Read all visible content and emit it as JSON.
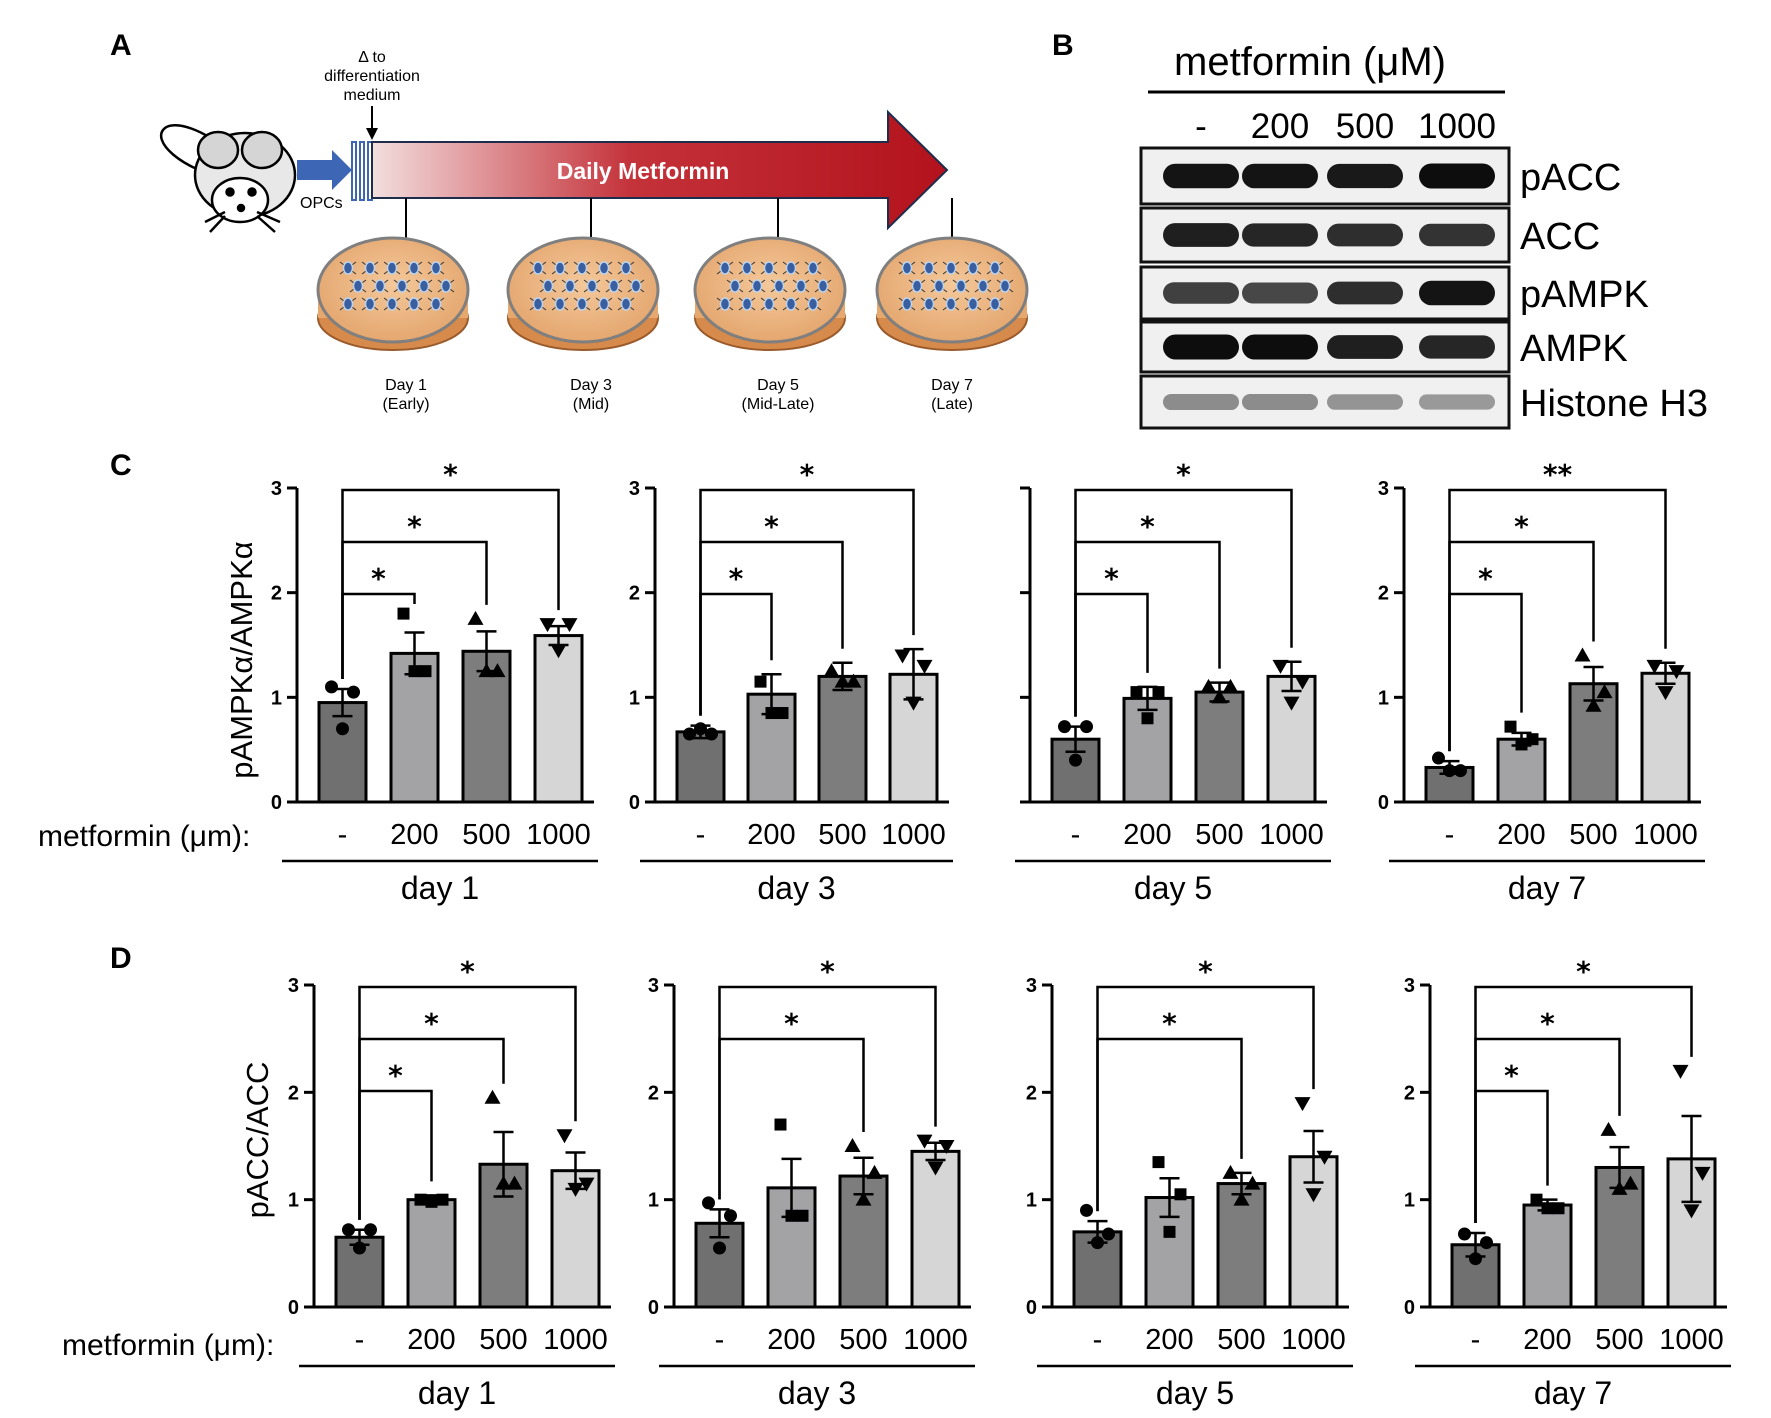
{
  "panels": {
    "a": "A",
    "b": "B",
    "c": "C",
    "d": "D"
  },
  "timeline": {
    "delta_label": [
      "Δ to",
      "differentiation",
      "medium"
    ],
    "opcs_label": "OPCs",
    "arrow_label": "Daily Metformin",
    "days": [
      {
        "name": "Day 1",
        "stage": "(Early)"
      },
      {
        "name": "Day 3",
        "stage": "(Mid)"
      },
      {
        "name": "Day 5",
        "stage": "(Mid-Late)"
      },
      {
        "name": "Day 7",
        "stage": "(Late)"
      }
    ]
  },
  "western_blot": {
    "header": "metformin (μM)",
    "lanes": [
      "-",
      "200",
      "500",
      "1000"
    ],
    "rows": [
      "pACC",
      "ACC",
      "pAMPK",
      "AMPK",
      "Histone H3"
    ],
    "band_intensity": [
      [
        0.92,
        0.92,
        0.9,
        0.95
      ],
      [
        0.88,
        0.85,
        0.82,
        0.8
      ],
      [
        0.75,
        0.72,
        0.82,
        0.92
      ],
      [
        0.95,
        0.95,
        0.88,
        0.85
      ],
      [
        0.45,
        0.45,
        0.42,
        0.4
      ]
    ]
  },
  "x_lead_label": "metformin (μm):",
  "chart_data": [
    {
      "type": "bar",
      "panel": "C",
      "title": "day 1",
      "ylabel": "pAMPKα/AMPKα",
      "ylim": [
        0,
        3
      ],
      "yticks": [
        "0",
        "1",
        "2",
        "3"
      ],
      "categories": [
        "-",
        "200",
        "500",
        "1000"
      ],
      "values": [
        0.95,
        1.42,
        1.44,
        1.59
      ],
      "errors": [
        0.13,
        0.2,
        0.19,
        0.09
      ],
      "points": [
        [
          1.1,
          1.05,
          0.7
        ],
        [
          1.8,
          1.25,
          1.25
        ],
        [
          1.75,
          1.25,
          1.25
        ],
        [
          1.7,
          1.7,
          1.45
        ]
      ],
      "significance": [
        {
          "to": 1,
          "label": "*"
        },
        {
          "to": 2,
          "label": "*"
        },
        {
          "to": 3,
          "label": "*"
        }
      ]
    },
    {
      "type": "bar",
      "panel": "C",
      "title": "day 3",
      "ylabel": "",
      "ylim": [
        0,
        3
      ],
      "yticks": [
        "0",
        "1",
        "2",
        "3"
      ],
      "categories": [
        "-",
        "200",
        "500",
        "1000"
      ],
      "values": [
        0.67,
        1.03,
        1.2,
        1.22
      ],
      "errors": [
        0.06,
        0.19,
        0.13,
        0.24
      ],
      "points": [
        [
          0.65,
          0.65,
          0.7
        ],
        [
          1.15,
          0.85,
          0.85
        ],
        [
          1.25,
          1.15,
          1.15
        ],
        [
          1.4,
          1.3,
          0.95
        ]
      ],
      "significance": [
        {
          "to": 1,
          "label": "*"
        },
        {
          "to": 2,
          "label": "*"
        },
        {
          "to": 3,
          "label": "*"
        }
      ]
    },
    {
      "type": "bar",
      "panel": "C",
      "title": "day 5",
      "ylabel": "",
      "ylim": [
        0,
        3
      ],
      "yticks": [
        "",
        "",
        "",
        ""
      ],
      "categories": [
        "-",
        "200",
        "500",
        "1000"
      ],
      "values": [
        0.6,
        0.99,
        1.05,
        1.2
      ],
      "errors": [
        0.12,
        0.11,
        0.09,
        0.14
      ],
      "points": [
        [
          0.72,
          0.72,
          0.4
        ],
        [
          1.05,
          1.05,
          0.8
        ],
        [
          1.1,
          1.1,
          1.0
        ],
        [
          1.3,
          1.15,
          0.95
        ]
      ],
      "significance": [
        {
          "to": 1,
          "label": "*"
        },
        {
          "to": 2,
          "label": "*"
        },
        {
          "to": 3,
          "label": "*"
        }
      ]
    },
    {
      "type": "bar",
      "panel": "C",
      "title": "day 7",
      "ylabel": "",
      "ylim": [
        0,
        3
      ],
      "yticks": [
        "0",
        "1",
        "2",
        "3"
      ],
      "categories": [
        "-",
        "200",
        "500",
        "1000"
      ],
      "values": [
        0.33,
        0.6,
        1.13,
        1.23
      ],
      "errors": [
        0.06,
        0.06,
        0.16,
        0.1
      ],
      "points": [
        [
          0.42,
          0.3,
          0.3
        ],
        [
          0.72,
          0.6,
          0.55
        ],
        [
          1.4,
          1.05,
          0.92
        ],
        [
          1.3,
          1.25,
          1.05
        ]
      ],
      "significance": [
        {
          "to": 1,
          "label": "*"
        },
        {
          "to": 2,
          "label": "*"
        },
        {
          "to": 3,
          "label": "**"
        }
      ]
    },
    {
      "type": "bar",
      "panel": "D",
      "title": "day 1",
      "ylabel": "pACC/ACC",
      "ylim": [
        0,
        3
      ],
      "yticks": [
        "0",
        "1",
        "2",
        "3"
      ],
      "categories": [
        "-",
        "200",
        "500",
        "1000"
      ],
      "values": [
        0.65,
        1.0,
        1.33,
        1.27
      ],
      "errors": [
        0.07,
        0.04,
        0.3,
        0.17
      ],
      "points": [
        [
          0.72,
          0.72,
          0.55
        ],
        [
          1.0,
          1.0,
          0.98
        ],
        [
          1.95,
          1.15,
          1.15
        ],
        [
          1.6,
          1.15,
          1.1
        ]
      ],
      "significance": [
        {
          "to": 1,
          "label": "*"
        },
        {
          "to": 2,
          "label": "*"
        },
        {
          "to": 3,
          "label": "*"
        }
      ]
    },
    {
      "type": "bar",
      "panel": "D",
      "title": "day 3",
      "ylabel": "",
      "ylim": [
        0,
        3
      ],
      "yticks": [
        "0",
        "1",
        "2",
        "3"
      ],
      "categories": [
        "-",
        "200",
        "500",
        "1000"
      ],
      "values": [
        0.78,
        1.11,
        1.22,
        1.45
      ],
      "errors": [
        0.13,
        0.27,
        0.17,
        0.08
      ],
      "points": [
        [
          0.97,
          0.85,
          0.55
        ],
        [
          1.7,
          0.85,
          0.85
        ],
        [
          1.5,
          1.25,
          1.0
        ],
        [
          1.55,
          1.5,
          1.3
        ]
      ],
      "significance": [
        {
          "to": 2,
          "label": "*"
        },
        {
          "to": 3,
          "label": "*"
        }
      ]
    },
    {
      "type": "bar",
      "panel": "D",
      "title": "day 5",
      "ylabel": "",
      "ylim": [
        0,
        3
      ],
      "yticks": [
        "0",
        "1",
        "2",
        "3"
      ],
      "categories": [
        "-",
        "200",
        "500",
        "1000"
      ],
      "values": [
        0.7,
        1.02,
        1.15,
        1.4
      ],
      "errors": [
        0.1,
        0.18,
        0.1,
        0.24
      ],
      "points": [
        [
          0.9,
          0.68,
          0.6
        ],
        [
          1.35,
          1.05,
          0.7
        ],
        [
          1.25,
          1.15,
          1.0
        ],
        [
          1.9,
          1.4,
          1.05
        ]
      ],
      "significance": [
        {
          "to": 2,
          "label": "*"
        },
        {
          "to": 3,
          "label": "*"
        }
      ]
    },
    {
      "type": "bar",
      "panel": "D",
      "title": "day 7",
      "ylabel": "",
      "ylim": [
        0,
        3
      ],
      "yticks": [
        "0",
        "1",
        "2",
        "3"
      ],
      "categories": [
        "-",
        "200",
        "500",
        "1000"
      ],
      "values": [
        0.58,
        0.95,
        1.3,
        1.38
      ],
      "errors": [
        0.11,
        0.05,
        0.19,
        0.4
      ],
      "points": [
        [
          0.68,
          0.6,
          0.45
        ],
        [
          1.0,
          0.92,
          0.92
        ],
        [
          1.65,
          1.15,
          1.1
        ],
        [
          2.2,
          1.25,
          0.9
        ]
      ],
      "significance": [
        {
          "to": 1,
          "label": "*"
        },
        {
          "to": 2,
          "label": "*"
        },
        {
          "to": 3,
          "label": "*"
        }
      ]
    }
  ]
}
